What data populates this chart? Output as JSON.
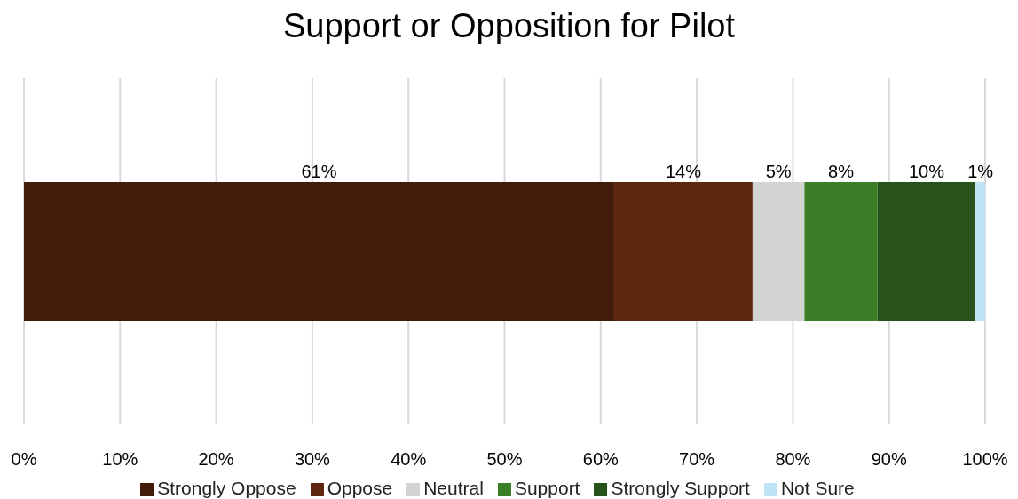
{
  "chart_data": {
    "type": "bar",
    "orientation": "horizontal",
    "stacked": true,
    "title": "Support or Opposition for Pilot",
    "categories": [
      null
    ],
    "series": [
      {
        "name": "Strongly Oppose",
        "color": "#421b0a",
        "values": [
          61.4
        ],
        "value_labels": [
          "61%"
        ]
      },
      {
        "name": "Oppose",
        "color": "#5e270e",
        "values": [
          14.4
        ],
        "value_labels": [
          "14%"
        ]
      },
      {
        "name": "Neutral",
        "color": "#d3d3d3",
        "values": [
          5.4
        ],
        "value_labels": [
          "5%"
        ]
      },
      {
        "name": "Support",
        "color": "#3a7f27",
        "values": [
          7.6
        ],
        "value_labels": [
          "8%"
        ]
      },
      {
        "name": "Strongly Support",
        "color": "#27531a",
        "values": [
          10.2
        ],
        "value_labels": [
          "10%"
        ]
      },
      {
        "name": "Not Sure",
        "color": "#bde3f5",
        "values": [
          1.0
        ],
        "value_labels": [
          "1%"
        ]
      }
    ],
    "xlim": [
      0,
      100
    ],
    "xticks": [
      {
        "value": 0,
        "label": "0%"
      },
      {
        "value": 10,
        "label": "10%"
      },
      {
        "value": 20,
        "label": "20%"
      },
      {
        "value": 30,
        "label": "30%"
      },
      {
        "value": 40,
        "label": "40%"
      },
      {
        "value": 50,
        "label": "50%"
      },
      {
        "value": 60,
        "label": "60%"
      },
      {
        "value": 70,
        "label": "70%"
      },
      {
        "value": 80,
        "label": "80%"
      },
      {
        "value": 90,
        "label": "90%"
      },
      {
        "value": 100,
        "label": "100%"
      }
    ],
    "grid": "x",
    "legend": "bottom"
  }
}
